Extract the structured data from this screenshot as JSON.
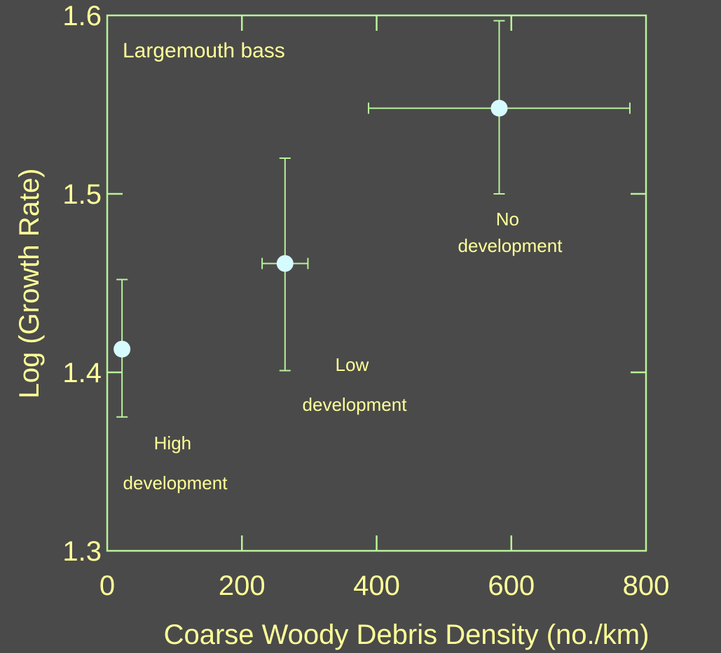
{
  "chart_data": {
    "type": "scatter",
    "title": "",
    "panel_label": "Largemouth bass",
    "xlabel": "Coarse Woody Debris Density (no./km)",
    "ylabel": "Log (Growth Rate)",
    "xlim": [
      0,
      800
    ],
    "ylim": [
      1.3,
      1.6
    ],
    "x_ticks": [
      0,
      200,
      400,
      600,
      800
    ],
    "x_tick_labels": [
      "0",
      "200",
      "400",
      "600",
      "800"
    ],
    "y_ticks": [
      1.3,
      1.4,
      1.5,
      1.6
    ],
    "y_tick_labels": [
      "1.3",
      "1.4",
      "1.5",
      "1.6"
    ],
    "grid": false,
    "points": [
      {
        "x": 22,
        "y": 1.413,
        "y_err_low": 1.375,
        "y_err_high": 1.452
      },
      {
        "x": 264,
        "y": 1.461,
        "y_err_low": 1.401,
        "y_err_high": 1.52,
        "x_err_low": 230,
        "x_err_high": 298
      },
      {
        "x": 582,
        "y": 1.548,
        "y_err_low": 1.5,
        "y_err_high": 1.597,
        "x_err_low": 388,
        "x_err_high": 776
      }
    ],
    "annotations": [
      {
        "lines": [
          "High",
          "development"
        ]
      },
      {
        "lines": [
          "Low",
          "development"
        ]
      },
      {
        "lines": [
          "No",
          "development"
        ]
      }
    ],
    "colors": {
      "background": "#4a4a4a",
      "axes": "#b9f29a",
      "text": "#ffff99",
      "marker": "#d6fbff"
    }
  }
}
